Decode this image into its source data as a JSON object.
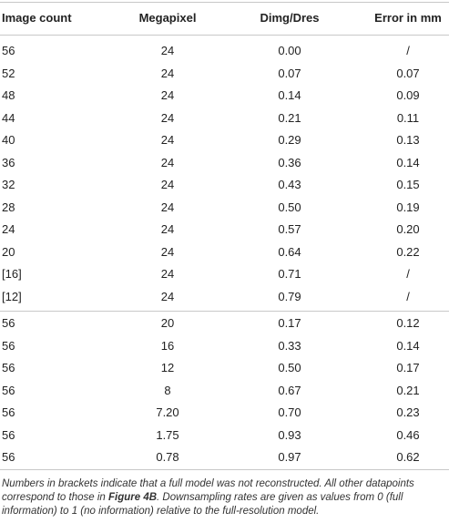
{
  "table": {
    "header": [
      "Image count",
      "Megapixel",
      "Dimg/Dres",
      "Error in mm"
    ],
    "groups": [
      [
        [
          "56",
          "24",
          "0.00",
          "/"
        ],
        [
          "52",
          "24",
          "0.07",
          "0.07"
        ],
        [
          "48",
          "24",
          "0.14",
          "0.09"
        ],
        [
          "44",
          "24",
          "0.21",
          "0.11"
        ],
        [
          "40",
          "24",
          "0.29",
          "0.13"
        ],
        [
          "36",
          "24",
          "0.36",
          "0.14"
        ],
        [
          "32",
          "24",
          "0.43",
          "0.15"
        ],
        [
          "28",
          "24",
          "0.50",
          "0.19"
        ],
        [
          "24",
          "24",
          "0.57",
          "0.20"
        ],
        [
          "20",
          "24",
          "0.64",
          "0.22"
        ],
        [
          "[16]",
          "24",
          "0.71",
          "/"
        ],
        [
          "[12]",
          "24",
          "0.79",
          "/"
        ]
      ],
      [
        [
          "56",
          "20",
          "0.17",
          "0.12"
        ],
        [
          "56",
          "16",
          "0.33",
          "0.14"
        ],
        [
          "56",
          "12",
          "0.50",
          "0.17"
        ],
        [
          "56",
          "8",
          "0.67",
          "0.21"
        ],
        [
          "56",
          "7.20",
          "0.70",
          "0.23"
        ],
        [
          "56",
          "1.75",
          "0.93",
          "0.46"
        ],
        [
          "56",
          "0.78",
          "0.97",
          "0.62"
        ]
      ]
    ]
  },
  "footnote": [
    "Numbers in brackets indicate that a full model was not reconstructed. All other datapoints correspond to those in ",
    "Figure 4B",
    ". Downsampling rates are given as values from 0 (full information) to 1 (no information) relative to the full-resolution model."
  ]
}
